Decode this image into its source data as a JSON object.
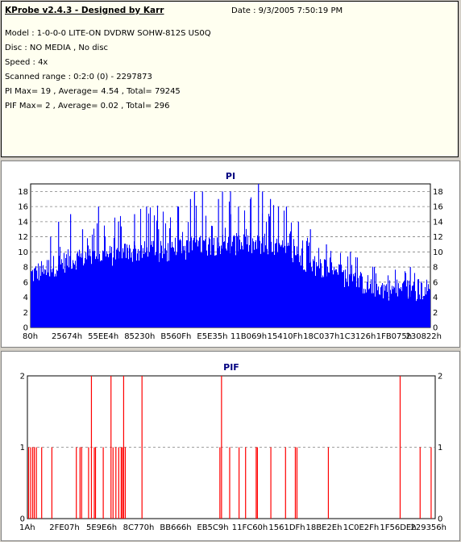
{
  "header": {
    "title": "KProbe v2.4.3 - Designed by Karr",
    "date": "Date : 9/3/2005 7:50:19 PM",
    "lines": [
      "Model : 1-0-0-0 LITE-ON DVDRW SOHW-812S  US0Q",
      "Disc : NO MEDIA , No disc",
      "Speed : 4x",
      "Scanned range : 0:2:0 (0) - 2297873",
      "PI Max= 19 , Average= 4.54 , Total= 79245",
      "PIF Max= 2 , Average= 0.02 , Total= 296"
    ]
  },
  "chart_data": [
    {
      "type": "bar",
      "title": "PI",
      "color": "#0000ff",
      "ylim": [
        0,
        19
      ],
      "yticks": [
        0,
        2,
        4,
        6,
        8,
        10,
        12,
        14,
        16,
        18
      ],
      "xticks": [
        "80h",
        "25674h",
        "55EE4h",
        "85230h",
        "B560Fh",
        "E5E35h",
        "11B069h",
        "15410Fh",
        "18C037h",
        "1C3126h",
        "1FB075h",
        "230822h"
      ],
      "grid": true,
      "max": 19,
      "average": 4.54,
      "base_envelope": [
        [
          0,
          7
        ],
        [
          0.05,
          8
        ],
        [
          0.1,
          9
        ],
        [
          0.15,
          9.5
        ],
        [
          0.2,
          9.5
        ],
        [
          0.25,
          10
        ],
        [
          0.3,
          10
        ],
        [
          0.35,
          10
        ],
        [
          0.4,
          10.5
        ],
        [
          0.45,
          11
        ],
        [
          0.5,
          11
        ],
        [
          0.55,
          11
        ],
        [
          0.6,
          10.5
        ],
        [
          0.65,
          10
        ],
        [
          0.7,
          8.5
        ],
        [
          0.75,
          7.5
        ],
        [
          0.8,
          6.5
        ],
        [
          0.85,
          5.5
        ],
        [
          0.9,
          5
        ],
        [
          0.95,
          5
        ],
        [
          1.0,
          5
        ]
      ],
      "peak_envelope": [
        [
          0,
          11
        ],
        [
          0.1,
          13
        ],
        [
          0.2,
          15
        ],
        [
          0.3,
          16
        ],
        [
          0.4,
          17
        ],
        [
          0.5,
          18
        ],
        [
          0.6,
          17
        ],
        [
          0.7,
          13
        ],
        [
          0.8,
          10
        ],
        [
          0.9,
          8
        ],
        [
          1.0,
          7
        ]
      ],
      "spikes": [
        [
          0.05,
          12
        ],
        [
          0.07,
          14
        ],
        [
          0.1,
          15
        ],
        [
          0.13,
          13
        ],
        [
          0.17,
          16
        ],
        [
          0.22,
          14
        ],
        [
          0.26,
          15
        ],
        [
          0.29,
          16
        ],
        [
          0.32,
          13
        ],
        [
          0.37,
          16
        ],
        [
          0.4,
          17
        ],
        [
          0.41,
          18
        ],
        [
          0.43,
          18
        ],
        [
          0.47,
          17
        ],
        [
          0.48,
          18
        ],
        [
          0.5,
          18
        ],
        [
          0.52,
          16
        ],
        [
          0.55,
          17
        ],
        [
          0.57,
          19
        ],
        [
          0.58,
          18
        ],
        [
          0.6,
          17
        ],
        [
          0.62,
          16
        ],
        [
          0.64,
          16
        ],
        [
          0.67,
          14
        ],
        [
          0.7,
          13
        ],
        [
          0.74,
          11
        ],
        [
          0.8,
          10
        ],
        [
          0.86,
          8
        ],
        [
          0.95,
          8
        ]
      ]
    },
    {
      "type": "bar",
      "title": "PIF",
      "color": "#ff0000",
      "ylim": [
        0,
        2
      ],
      "yticks": [
        0,
        1,
        2
      ],
      "xticks": [
        "1Ah",
        "2FE07h",
        "5E9E6h",
        "8C770h",
        "BB666h",
        "EB5C9h",
        "11FC60h",
        "1561DFh",
        "18BE2Eh",
        "1C0E2Fh",
        "1F56DEh",
        "229356h"
      ],
      "grid": true,
      "max": 2,
      "average": 0.02,
      "events": [
        [
          0.003,
          1
        ],
        [
          0.008,
          1
        ],
        [
          0.013,
          1
        ],
        [
          0.017,
          1
        ],
        [
          0.022,
          1
        ],
        [
          0.035,
          1
        ],
        [
          0.06,
          1
        ],
        [
          0.12,
          1
        ],
        [
          0.129,
          1
        ],
        [
          0.133,
          1
        ],
        [
          0.15,
          1
        ],
        [
          0.157,
          2
        ],
        [
          0.164,
          1
        ],
        [
          0.167,
          1
        ],
        [
          0.186,
          1
        ],
        [
          0.205,
          2
        ],
        [
          0.21,
          1
        ],
        [
          0.217,
          1
        ],
        [
          0.224,
          1
        ],
        [
          0.23,
          1
        ],
        [
          0.233,
          1
        ],
        [
          0.236,
          2
        ],
        [
          0.24,
          1
        ],
        [
          0.281,
          2
        ],
        [
          0.472,
          1
        ],
        [
          0.476,
          2
        ],
        [
          0.496,
          1
        ],
        [
          0.519,
          1
        ],
        [
          0.535,
          1
        ],
        [
          0.561,
          1
        ],
        [
          0.564,
          1
        ],
        [
          0.597,
          1
        ],
        [
          0.633,
          1
        ],
        [
          0.657,
          1
        ],
        [
          0.661,
          1
        ],
        [
          0.738,
          1
        ],
        [
          0.914,
          2
        ],
        [
          0.963,
          1
        ],
        [
          0.99,
          1
        ]
      ]
    }
  ]
}
